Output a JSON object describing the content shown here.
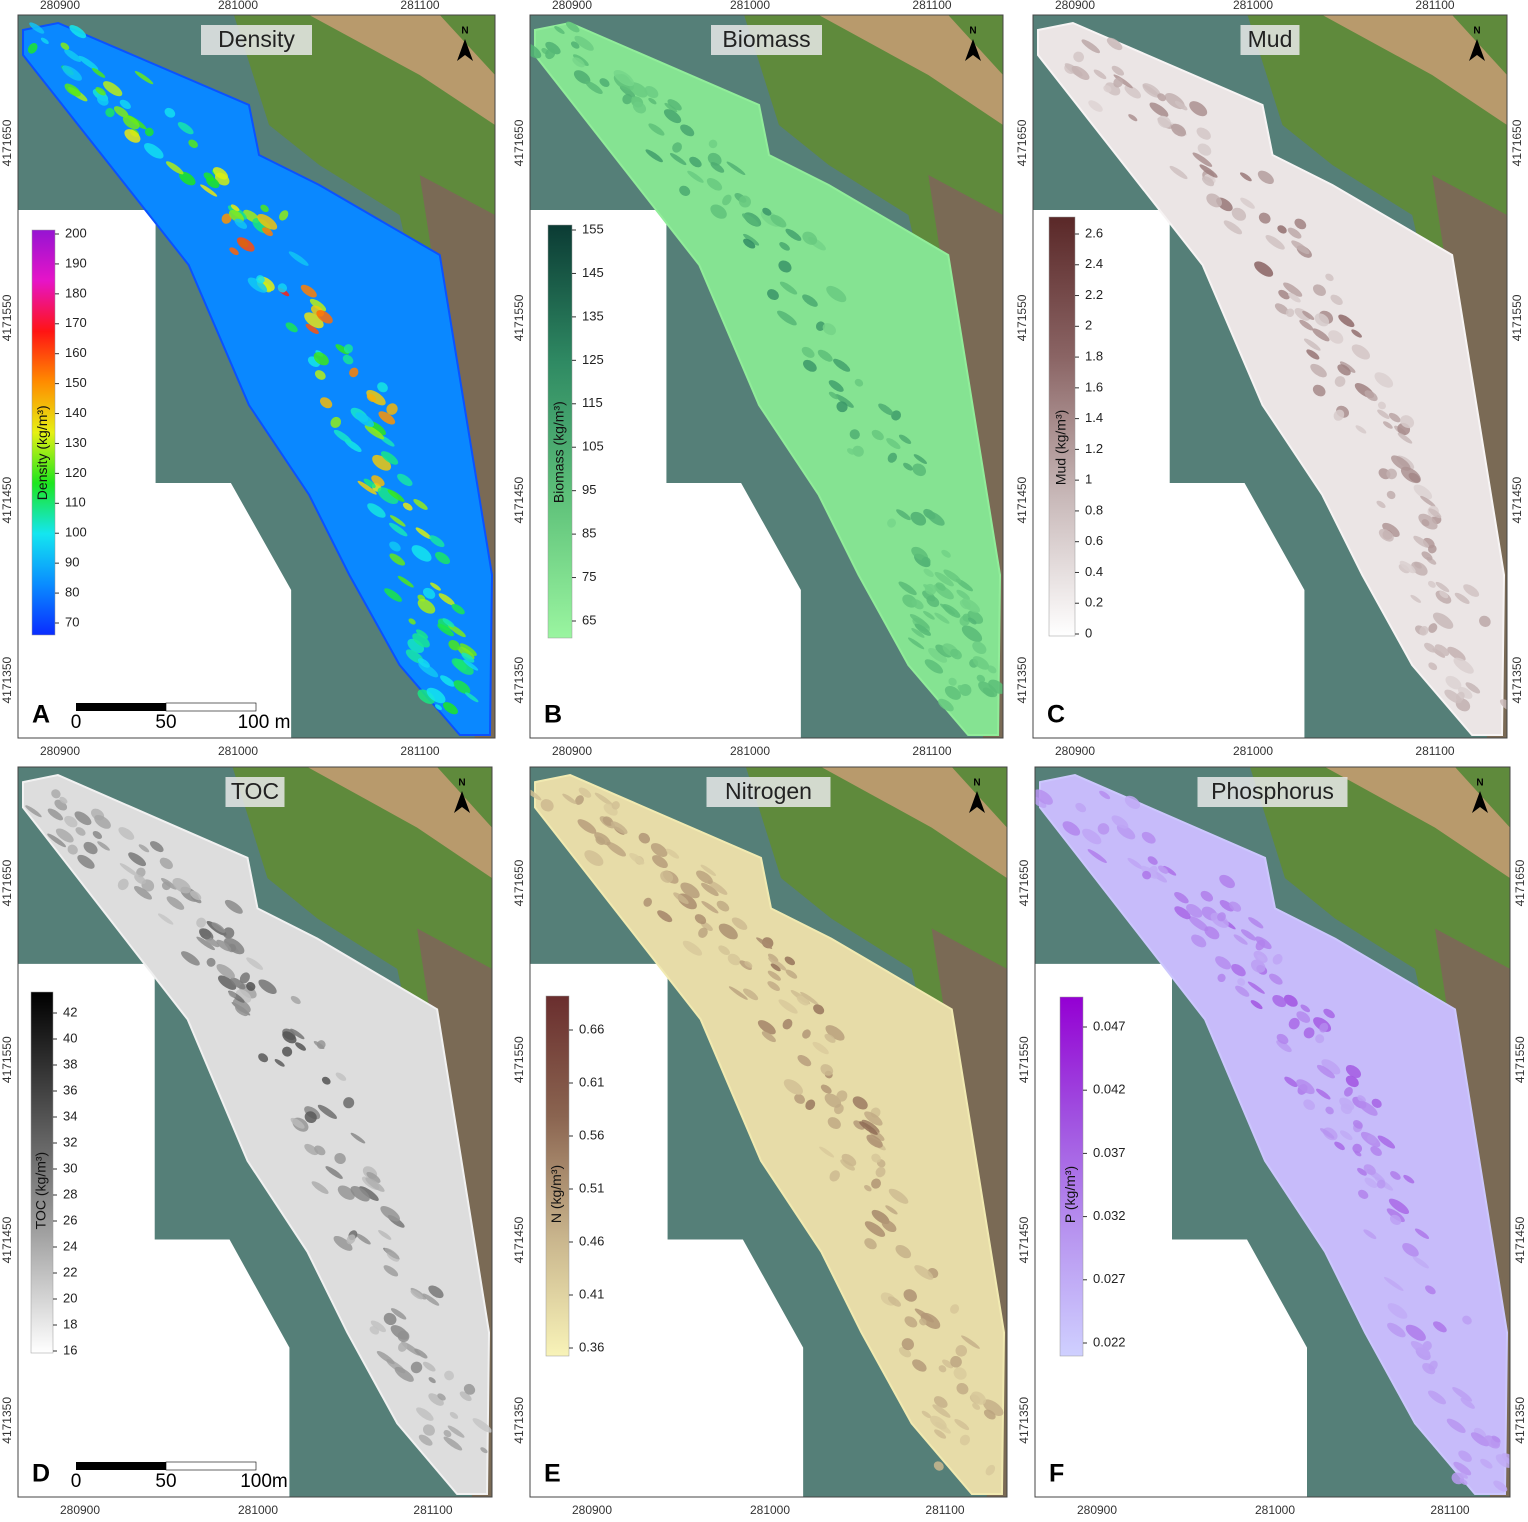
{
  "panels": [
    {
      "letter": "A",
      "title": "Density",
      "colorbar_label": "Density (kg/m³)",
      "colorbar_ticks": [
        200,
        190,
        180,
        170,
        160,
        150,
        140,
        130,
        120,
        110,
        100,
        90,
        80,
        70
      ],
      "north": "N",
      "scale_bar": [
        "0",
        "50",
        "100 m"
      ],
      "x_labels_top": [
        "280900",
        "281000",
        "281100"
      ],
      "x_labels_bottom": [
        "280900",
        "281000",
        "281100"
      ],
      "y_labels_left": [
        "4171650",
        "4171550",
        "4171450",
        "4171350"
      ]
    },
    {
      "letter": "B",
      "title": "Biomass",
      "colorbar_label": "Biomass (kg/m³)",
      "colorbar_ticks": [
        155,
        145,
        135,
        125,
        115,
        105,
        95,
        85,
        75,
        65
      ],
      "north": "N",
      "x_labels_top": [
        "280900",
        "281000",
        "281100"
      ],
      "x_labels_bottom": [
        "280900",
        "281000",
        "281100"
      ],
      "y_labels_left": [
        "4171650",
        "4171550",
        "4171450",
        "4171350"
      ]
    },
    {
      "letter": "C",
      "title": "Mud",
      "colorbar_label": "Mud (kg/m³)",
      "colorbar_ticks": [
        2.6,
        2.4,
        2.2,
        2,
        1.8,
        1.6,
        1.4,
        1.2,
        1,
        0.8,
        0.6,
        0.4,
        0.2,
        0
      ],
      "north": "N",
      "x_labels_top": [
        "280900",
        "281000",
        "281100"
      ],
      "x_labels_bottom": [
        "280900",
        "281000",
        "281100"
      ],
      "y_labels_left": [
        "4171650",
        "4171550",
        "4171450",
        "4171350"
      ],
      "y_labels_right": [
        "4171650",
        "4171550",
        "4171450",
        "4171350"
      ]
    },
    {
      "letter": "D",
      "title": "TOC",
      "colorbar_label": "TOC (kg/m³)",
      "colorbar_ticks": [
        42,
        40,
        38,
        36,
        34,
        32,
        30,
        28,
        26,
        24,
        22,
        20,
        18,
        16
      ],
      "north": "N",
      "scale_bar": [
        "0",
        "50",
        "100m"
      ],
      "x_labels_bottom": [
        "280900",
        "281000",
        "281100"
      ],
      "y_labels_left": [
        "4171650",
        "4171550",
        "4171450",
        "4171350"
      ]
    },
    {
      "letter": "E",
      "title": "Nitrogen",
      "colorbar_label": "N (kg/m³)",
      "colorbar_ticks": [
        0.66,
        0.61,
        0.56,
        0.51,
        0.46,
        0.41,
        0.36
      ],
      "north": "N",
      "x_labels_bottom": [
        "280900",
        "281000",
        "281100"
      ],
      "y_labels_left": [
        "4171650",
        "4171550",
        "4171450",
        "4171350"
      ]
    },
    {
      "letter": "F",
      "title": "Phosphorus",
      "colorbar_label": "P (kg/m³)",
      "colorbar_ticks": [
        0.047,
        0.042,
        0.037,
        0.032,
        0.027,
        0.022
      ],
      "north": "N",
      "x_labels_bottom": [
        "280900",
        "281000",
        "281100"
      ],
      "y_labels_left": [
        "4171650",
        "4171550",
        "4171450",
        "4171350"
      ],
      "y_labels_right": [
        "4171650",
        "4171550",
        "4171450",
        "4171350"
      ]
    }
  ]
}
